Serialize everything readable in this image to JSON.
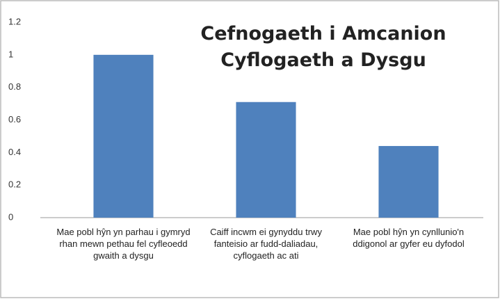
{
  "chart_data": {
    "type": "bar",
    "title": "Cefnogaeth i Amcanion Cyflogaeth a Dysgu",
    "categories": [
      "Mae pobl hŷn yn parhau i gymryd rhan mewn pethau fel cyfleoedd gwaith a dysgu",
      "Caiff incwm ei gynyddu trwy fanteisio ar fudd-daliadau, cyflogaeth ac ati",
      "Mae pobl hŷn yn cynllunio'n ddigonol ar gyfer eu dyfodol"
    ],
    "values": [
      1,
      0.71,
      0.44
    ],
    "color": "#4f81bd",
    "ylim": [
      0,
      1.2
    ],
    "yticks": [
      0,
      0.2,
      0.4,
      0.6,
      0.8,
      1,
      1.2
    ],
    "grid": false
  }
}
